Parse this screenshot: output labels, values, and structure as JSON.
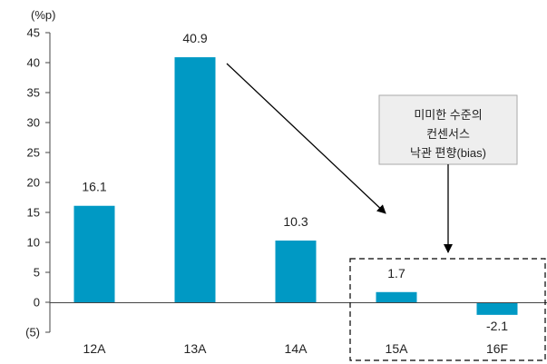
{
  "chart_data": {
    "type": "bar",
    "unit_label": "(%p)",
    "categories": [
      "12A",
      "13A",
      "14A",
      "15A",
      "16F"
    ],
    "values": [
      16.1,
      40.9,
      10.3,
      1.7,
      -2.1
    ],
    "value_labels": [
      "16.1",
      "40.9",
      "10.3",
      "1.7",
      "-2.1"
    ],
    "y_ticks": [
      "45",
      "40",
      "35",
      "30",
      "25",
      "20",
      "15",
      "10",
      "5",
      "0",
      "(5)"
    ],
    "y_tick_values": [
      45,
      40,
      35,
      30,
      25,
      20,
      15,
      10,
      5,
      0,
      -5
    ],
    "ylim": [
      -5,
      45
    ],
    "grid": false,
    "bar_color": "#0099c4",
    "annotation": {
      "lines": [
        "미미한 수준의",
        "컨센서스",
        "낙관 편향(bias)"
      ]
    }
  }
}
